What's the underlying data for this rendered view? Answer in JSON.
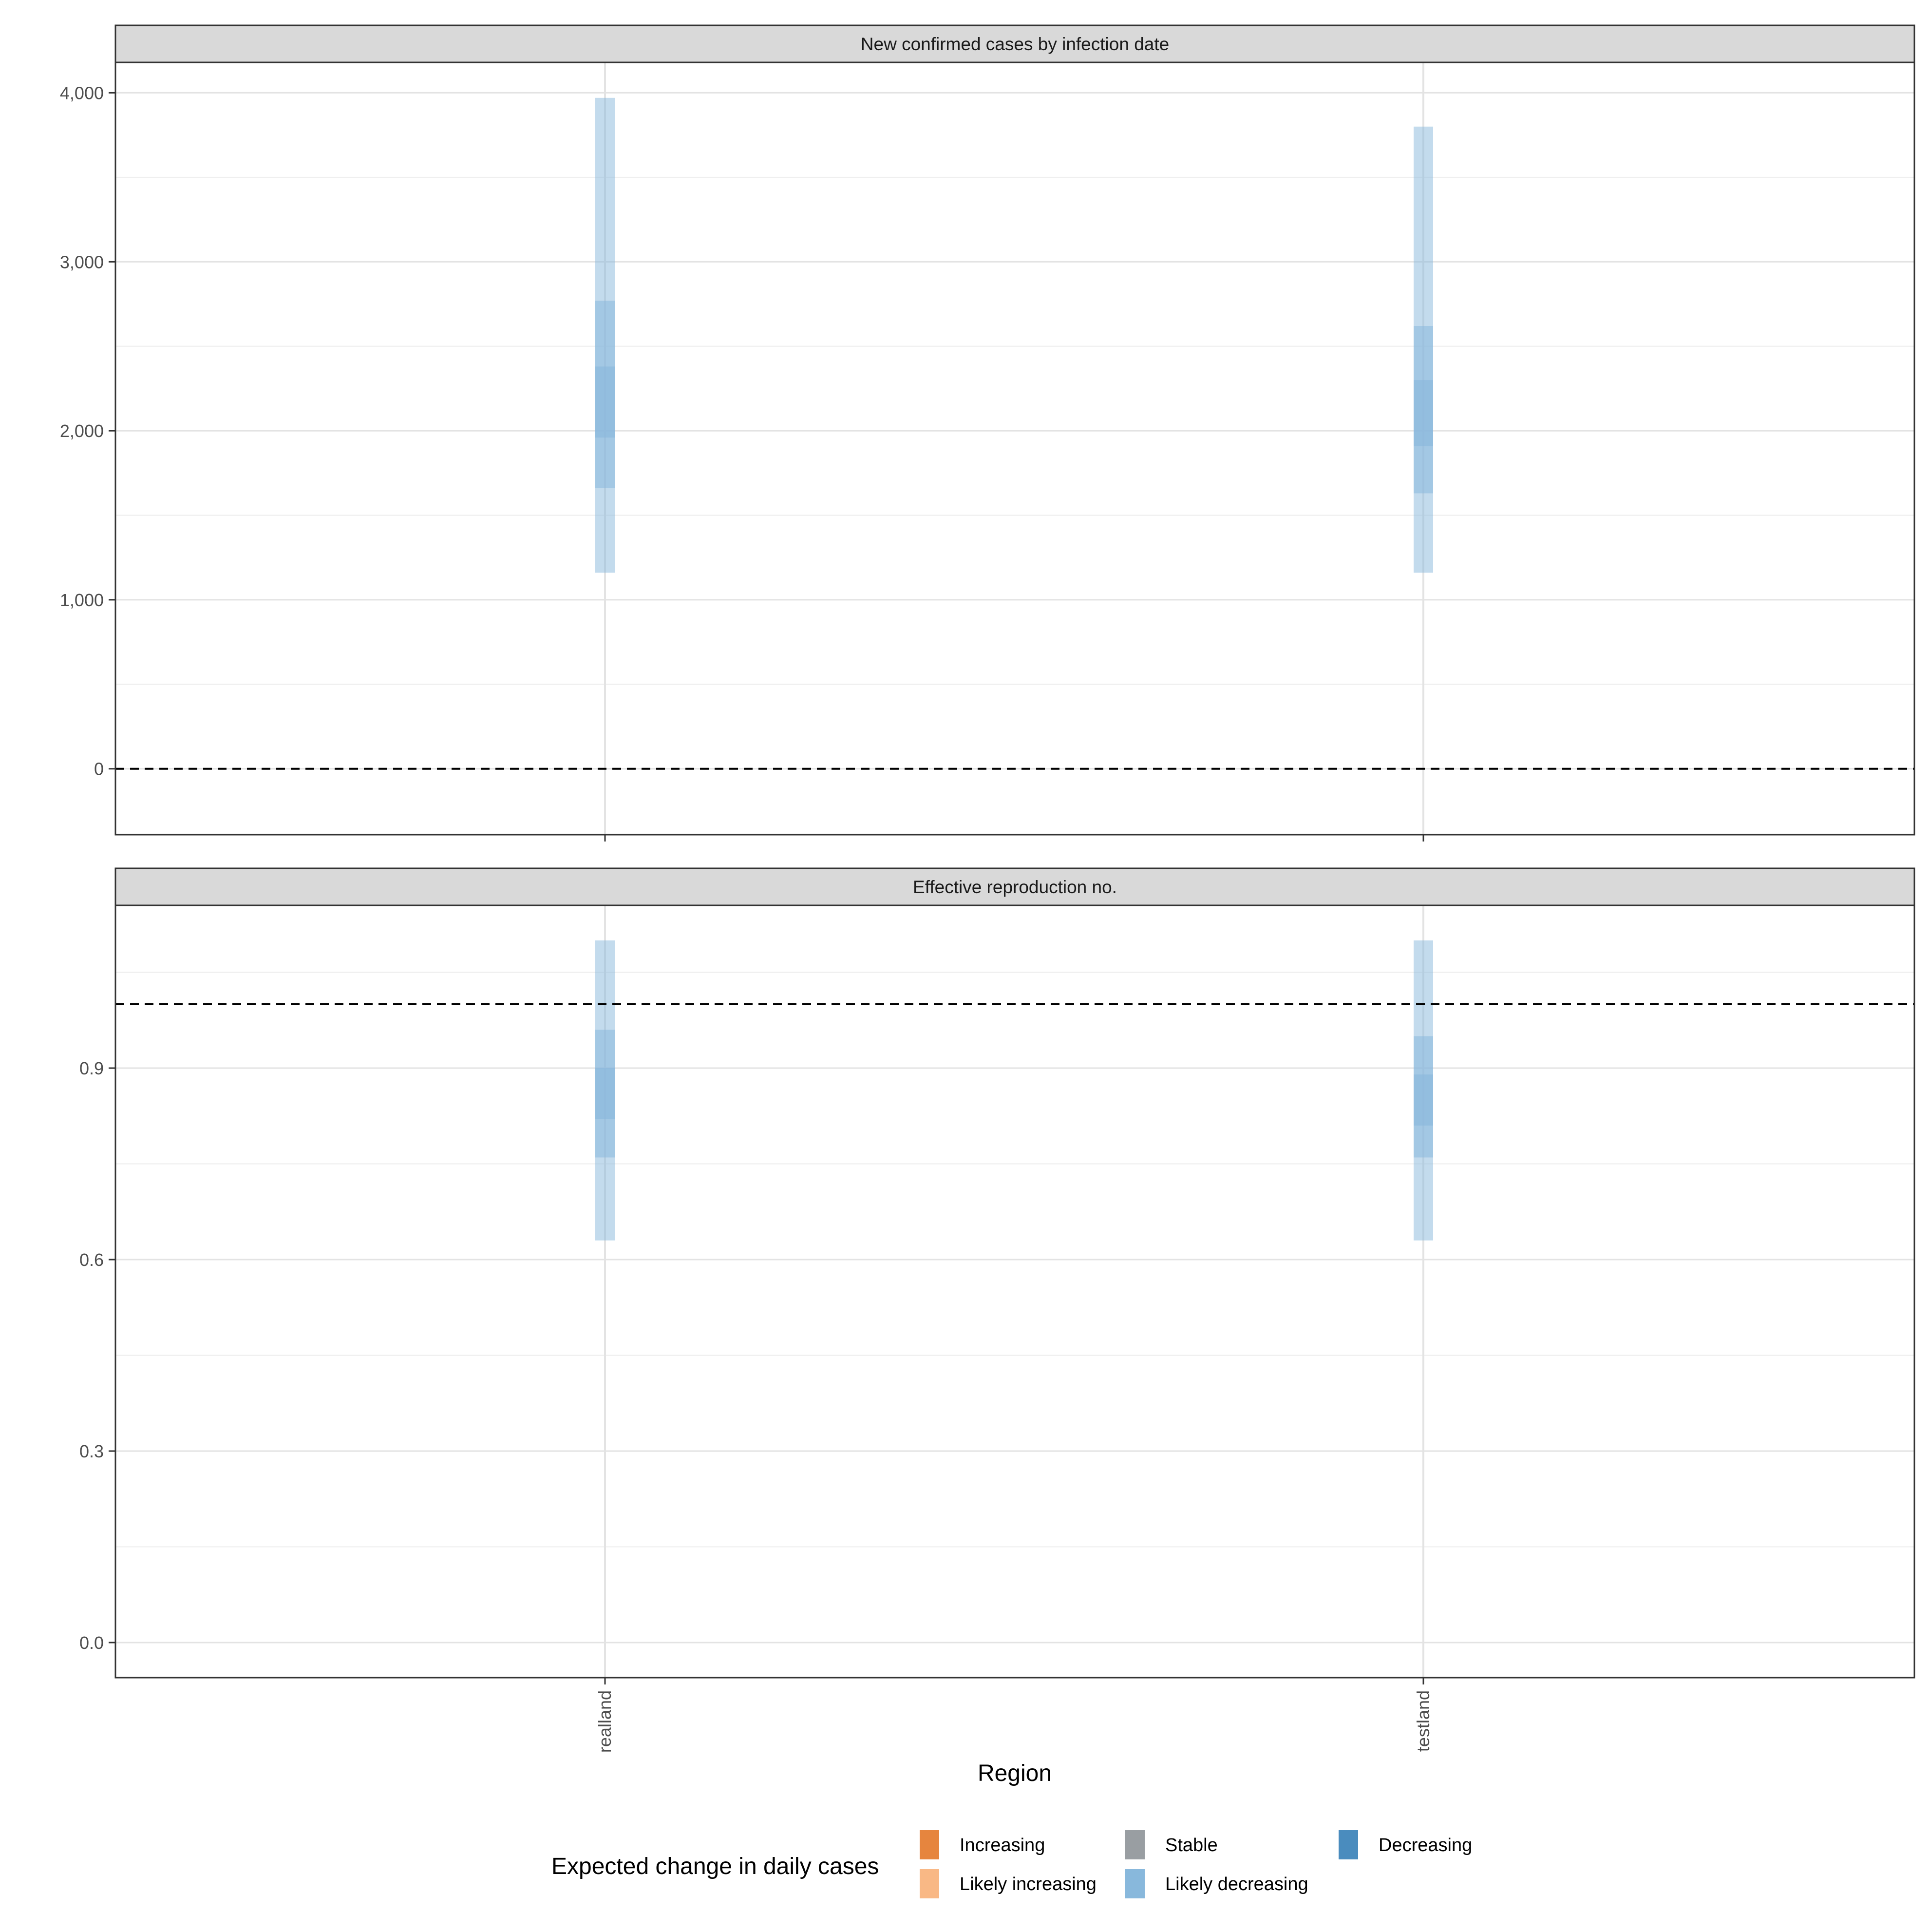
{
  "chart_data": [
    {
      "type": "interval",
      "title": "New confirmed cases by infection date",
      "categories": [
        "realland",
        "testland"
      ],
      "ylim": [
        -390,
        4180
      ],
      "yticks": [
        0,
        1000,
        2000,
        3000,
        4000
      ],
      "ytick_labels": [
        "0",
        "1,000",
        "2,000",
        "3,000",
        "4,000"
      ],
      "reference_line": 0,
      "grid": true,
      "series": [
        {
          "category": "realland",
          "category_key": "Likely decreasing",
          "ci90": [
            1160,
            3970
          ],
          "ci50": [
            1660,
            2770
          ],
          "ci20": [
            1960,
            2380
          ]
        },
        {
          "category": "testland",
          "category_key": "Likely decreasing",
          "ci90": [
            1160,
            3800
          ],
          "ci50": [
            1630,
            2620
          ],
          "ci20": [
            1910,
            2300
          ]
        }
      ]
    },
    {
      "type": "interval",
      "title": "Effective reproduction no.",
      "categories": [
        "realland",
        "testland"
      ],
      "ylim": [
        -0.055,
        1.155
      ],
      "yticks": [
        0.0,
        0.3,
        0.6,
        0.9
      ],
      "ytick_labels": [
        "0.0",
        "0.3",
        "0.6",
        "0.9"
      ],
      "reference_line": 1.0,
      "grid": true,
      "series": [
        {
          "category": "realland",
          "category_key": "Likely decreasing",
          "ci90": [
            0.63,
            1.1
          ],
          "ci50": [
            0.76,
            0.96
          ],
          "ci20": [
            0.82,
            0.9
          ]
        },
        {
          "category": "testland",
          "category_key": "Likely decreasing",
          "ci90": [
            0.63,
            1.1
          ],
          "ci50": [
            0.76,
            0.95
          ],
          "ci20": [
            0.81,
            0.89
          ]
        }
      ]
    }
  ],
  "xlabel": "Region",
  "legend": {
    "title": "Expected change in daily cases",
    "position": "bottom",
    "items": [
      {
        "label": "Increasing",
        "color": "#e6853e"
      },
      {
        "label": "Likely increasing",
        "color": "#f9b885"
      },
      {
        "label": "Stable",
        "color": "#999ea2"
      },
      {
        "label": "Likely decreasing",
        "color": "#88b8dc"
      },
      {
        "label": "Decreasing",
        "color": "#4a8cbe"
      }
    ]
  }
}
